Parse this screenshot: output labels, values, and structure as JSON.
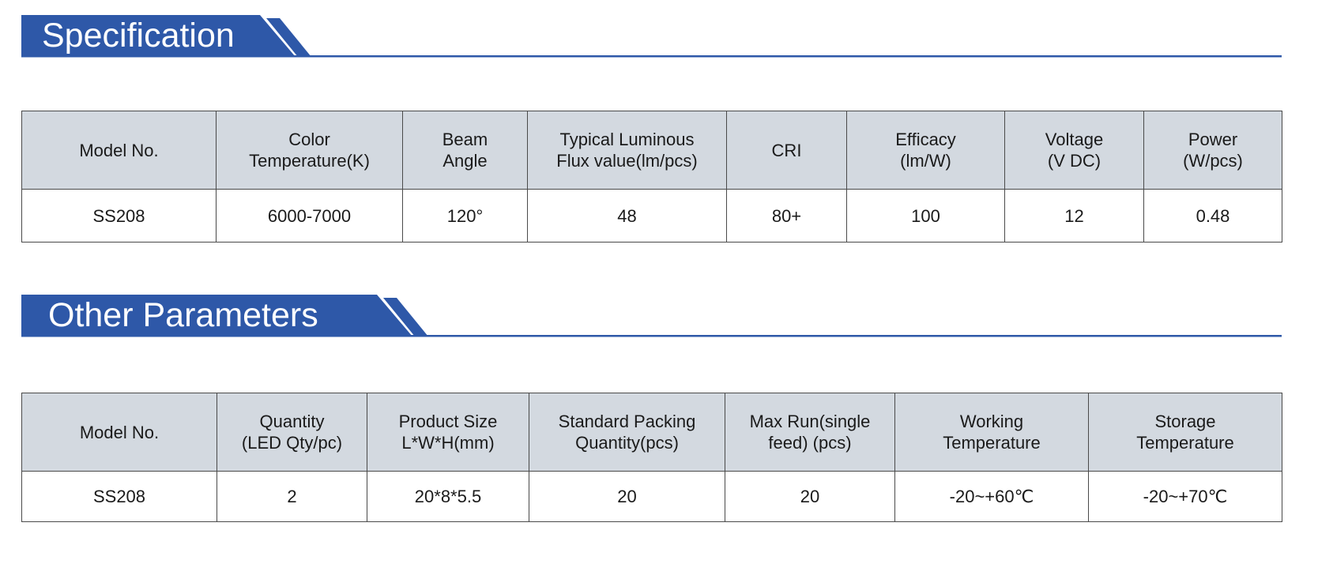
{
  "colors": {
    "accent": "#2e58a8",
    "header_fill": "#d3d9e0",
    "border": "#4a4a4a"
  },
  "specification": {
    "title": "Specification",
    "headers": [
      [
        "Model No."
      ],
      [
        "Color",
        "Temperature(K)"
      ],
      [
        "Beam",
        "Angle"
      ],
      [
        "Typical Luminous",
        "Flux value(lm/pcs)"
      ],
      [
        "CRI"
      ],
      [
        "Efficacy",
        "(lm/W)"
      ],
      [
        "Voltage",
        "(V DC)"
      ],
      [
        "Power",
        "(W/pcs)"
      ]
    ],
    "rows": [
      [
        "SS208",
        "6000-7000",
        "120°",
        "48",
        "80+",
        "100",
        "12",
        "0.48"
      ]
    ]
  },
  "other_parameters": {
    "title": "Other Parameters",
    "headers": [
      [
        "Model No."
      ],
      [
        "Quantity",
        "(LED Qty/pc)"
      ],
      [
        "Product Size",
        "L*W*H(mm)"
      ],
      [
        "Standard Packing",
        "Quantity(pcs)"
      ],
      [
        "Max Run(single",
        "feed) (pcs)"
      ],
      [
        "Working",
        "Temperature"
      ],
      [
        "Storage",
        "Temperature"
      ]
    ],
    "rows": [
      [
        "SS208",
        "2",
        "20*8*5.5",
        "20",
        "20",
        "-20~+60℃",
        "-20~+70℃"
      ]
    ]
  }
}
